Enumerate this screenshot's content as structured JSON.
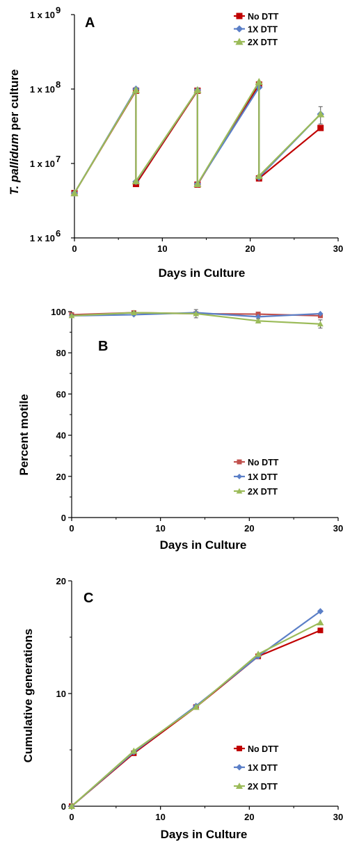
{
  "colors": {
    "No DTT": "#c00000",
    "1X DTT": "#5b7fc7",
    "2X DTT": "#9bbb59",
    "No DTT_light": "#c0504d"
  },
  "chart_data": [
    {
      "type": "line",
      "panel": "A",
      "xlabel": "Days in Culture",
      "ylabel_italic": "T. pallidum",
      "ylabel_rest": " per culture",
      "yscale": "log",
      "xlim": [
        0,
        30
      ],
      "ylim": [
        1000000,
        1000000000
      ],
      "xticks": [
        0,
        10,
        20,
        30
      ],
      "yticks": [
        {
          "value": 1000000,
          "mantissa": "1 x 10",
          "exp": "6"
        },
        {
          "value": 10000000,
          "mantissa": "1 x 10",
          "exp": "7"
        },
        {
          "value": 100000000,
          "mantissa": "1 x 10",
          "exp": "8"
        },
        {
          "value": 1000000000,
          "mantissa": "1 x 10",
          "exp": "9"
        }
      ],
      "legend_position": "top-right",
      "series": [
        {
          "name": "No DTT",
          "marker": "square",
          "x": [
            0,
            7,
            7,
            14,
            14,
            21,
            21,
            28
          ],
          "y": [
            4000000,
            95000000,
            5300000,
            95000000,
            5200000,
            115000000,
            6300000,
            30000000
          ]
        },
        {
          "name": "1X DTT",
          "marker": "diamond",
          "x": [
            0,
            7,
            7,
            14,
            14,
            21,
            21,
            28
          ],
          "y": [
            4000000,
            100000000,
            5700000,
            97000000,
            5300000,
            105000000,
            6500000,
            46000000
          ]
        },
        {
          "name": "2X DTT",
          "marker": "triangle",
          "x": [
            0,
            7,
            7,
            14,
            14,
            21,
            21,
            28
          ],
          "y": [
            4000000,
            97000000,
            5800000,
            97000000,
            5300000,
            125000000,
            6800000,
            46000000
          ],
          "errors": [
            0,
            0,
            0,
            0,
            0,
            0,
            0,
            12000000
          ]
        }
      ]
    },
    {
      "type": "line",
      "panel": "B",
      "xlabel": "Days in Culture",
      "ylabel": "Percent motile",
      "xlim": [
        0,
        30
      ],
      "ylim": [
        0,
        100
      ],
      "xticks": [
        0,
        10,
        20,
        30
      ],
      "yticks": [
        0,
        20,
        40,
        60,
        80,
        100
      ],
      "legend_position": "bottom-right",
      "series": [
        {
          "name": "No DTT",
          "marker": "square",
          "x": [
            0,
            7,
            14,
            21,
            28
          ],
          "y": [
            98.5,
            99.5,
            99,
            98.8,
            98
          ]
        },
        {
          "name": "1X DTT",
          "marker": "diamond",
          "x": [
            0,
            7,
            14,
            21,
            28
          ],
          "y": [
            98,
            98.5,
            99.5,
            97.5,
            99
          ]
        },
        {
          "name": "2X DTT",
          "marker": "triangle",
          "x": [
            0,
            7,
            14,
            21,
            28
          ],
          "y": [
            98,
            99.5,
            99,
            95.5,
            94
          ],
          "errors": [
            0.5,
            0.5,
            2,
            1,
            2
          ]
        }
      ]
    },
    {
      "type": "line",
      "panel": "C",
      "xlabel": "Days in Culture",
      "ylabel": "Cumulative generations",
      "xlim": [
        0,
        30
      ],
      "ylim": [
        0,
        20
      ],
      "xticks": [
        0,
        10,
        20,
        30
      ],
      "yticks": [
        0,
        10,
        20
      ],
      "legend_position": "bottom-right",
      "series": [
        {
          "name": "No DTT",
          "marker": "square",
          "x": [
            0,
            7,
            14,
            21,
            28
          ],
          "y": [
            0,
            4.7,
            8.8,
            13.3,
            15.6
          ]
        },
        {
          "name": "1X DTT",
          "marker": "diamond",
          "x": [
            0,
            7,
            14,
            21,
            28
          ],
          "y": [
            0,
            4.8,
            8.9,
            13.3,
            17.3
          ]
        },
        {
          "name": "2X DTT",
          "marker": "triangle",
          "x": [
            0,
            7,
            14,
            21,
            28
          ],
          "y": [
            0,
            4.9,
            8.8,
            13.5,
            16.3
          ]
        }
      ]
    }
  ]
}
